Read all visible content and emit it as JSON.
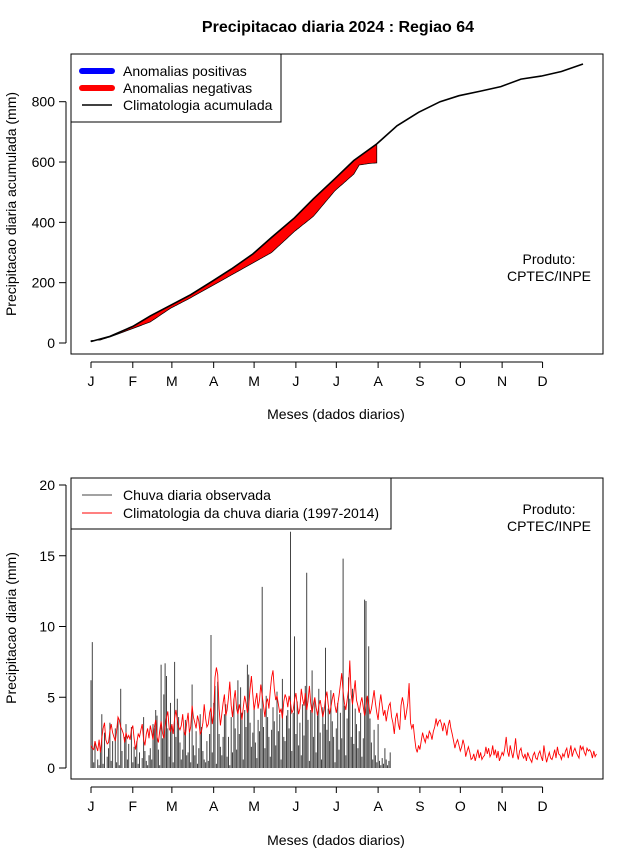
{
  "title": "Precipitacao diaria 2024 : Regiao 64",
  "months": [
    "J",
    "F",
    "M",
    "A",
    "M",
    "J",
    "J",
    "A",
    "S",
    "O",
    "N",
    "D"
  ],
  "colors": {
    "positive": "#0000ff",
    "negative": "#ff0000",
    "observed_line": "#000000",
    "clim_line": "#000000",
    "obs_bars": "#444444",
    "clim_daily": "#ff0000"
  },
  "chart_data": [
    {
      "type": "area",
      "title": "Precipitacao diaria 2024 : Regiao 64",
      "xlabel": "Meses (dados diarios)",
      "ylabel": "Precipitacao diaria acumulada (mm)",
      "ylim": [
        0,
        925
      ],
      "yticks": [
        0,
        200,
        400,
        600,
        800
      ],
      "xlim_days": [
        1,
        366
      ],
      "legend": {
        "placement": "top-left",
        "entries": [
          "Anomalias positivas",
          "Anomalias negativas",
          "Climatologia acumulada"
        ]
      },
      "credit": [
        "Produto:",
        "CPTEC/INPE"
      ],
      "climatology_cumulative": {
        "days": [
          1,
          15,
          32,
          45,
          60,
          75,
          91,
          105,
          121,
          135,
          152,
          166,
          182,
          196,
          213,
          228,
          244,
          260,
          274,
          290,
          305,
          320,
          335,
          350,
          366
        ],
        "values": [
          5,
          22,
          55,
          90,
          125,
          160,
          205,
          245,
          295,
          350,
          415,
          478,
          545,
          605,
          660,
          720,
          765,
          800,
          820,
          835,
          850,
          875,
          885,
          900,
          925
        ]
      },
      "observed_cumulative": {
        "days": [
          1,
          8,
          15,
          32,
          45,
          60,
          75,
          91,
          105,
          121,
          135,
          152,
          166,
          182,
          196,
          200,
          207,
          213
        ],
        "values": [
          8,
          10,
          20,
          48,
          70,
          115,
          150,
          190,
          225,
          265,
          300,
          370,
          420,
          505,
          560,
          590,
          595,
          597
        ]
      }
    },
    {
      "type": "bar",
      "xlabel": "Meses (dados diarios)",
      "ylabel": "Precipitacao diaria (mm)",
      "ylim": [
        0,
        20
      ],
      "yticks": [
        0,
        5,
        10,
        15,
        20
      ],
      "xlim_days": [
        1,
        366
      ],
      "legend": {
        "placement": "top-left",
        "entries": [
          "Chuva diaria observada",
          "Climatologia da chuva diaria (1997-2014)"
        ]
      },
      "credit": [
        "Produto:",
        "CPTEC/INPE"
      ],
      "observed_daily": [
        6.2,
        8.9,
        0.4,
        1.8,
        0,
        0.6,
        0.2,
        1.1,
        3.8,
        0.3,
        2.5,
        0,
        0.8,
        1.4,
        3.2,
        0.5,
        1.9,
        0,
        2.8,
        0.4,
        3.6,
        0.2,
        5.6,
        1.2,
        0,
        2.2,
        3.1,
        0.6,
        1.7,
        0,
        2.9,
        0.4,
        1.5,
        0.8,
        1.9,
        0.3,
        1.1,
        0,
        0.7,
        3.6,
        1.2,
        0.5,
        0.2,
        0.9,
        1.4,
        0.6,
        3.1,
        2.8,
        4.1,
        3.7,
        1.3,
        0.2,
        7.3,
        2.1,
        5.2,
        7.4,
        6.5,
        2.8,
        0.8,
        4.6,
        2.9,
        0.4,
        7.5,
        2.2,
        4.9,
        3.6,
        1.8,
        0.6,
        1.3,
        2.7,
        3.4,
        0.9,
        1.1,
        2.5,
        0.4,
        5.9,
        1.6,
        0.9,
        2.6,
        0.3,
        1.4,
        3.8,
        2.9,
        1.2,
        0.6,
        0.4,
        1.9,
        0.5,
        2.4,
        9.4,
        1.1,
        4.6,
        5.8,
        0.3,
        6.1,
        2.4,
        1.5,
        0.9,
        2.2,
        3.8,
        4.5,
        0.8,
        2.2,
        0.2,
        3.6,
        1.1,
        4.9,
        2.8,
        1.3,
        6.2,
        2.4,
        5.7,
        3.9,
        0.6,
        4.1,
        2.9,
        7.3,
        6.6,
        3.2,
        1.5,
        2.5,
        4.3,
        1.8,
        0.7,
        3.4,
        2.6,
        4.2,
        12.8,
        2.9,
        1.4,
        5.1,
        3.6,
        2.2,
        0.8,
        2.7,
        4.3,
        3.3,
        1.6,
        5.4,
        2.6,
        3.8,
        0.6,
        6.3,
        2.2,
        1.9,
        3.7,
        4.1,
        2.8,
        16.7,
        1.2,
        3.9,
        9.3,
        2.4,
        4.7,
        1.6,
        3.2,
        0.9,
        4.5,
        2.3,
        5.8,
        13.8,
        3.4,
        0.5,
        4.1,
        6.9,
        2.2,
        4.8,
        1.1,
        3.7,
        5.6,
        2.5,
        0.6,
        4.3,
        3.1,
        8.5,
        2.7,
        4.2,
        1.9,
        5.5,
        3.3,
        2.2,
        0.4,
        2.8,
        4.6,
        1.3,
        3.9,
        2.1,
        14.8,
        4.4,
        0.9,
        3.5,
        6.4,
        4.9,
        2.2,
        5.6,
        1.7,
        4.2,
        3.1,
        1.4,
        2.6,
        3.9,
        0.8,
        2.1,
        11.9,
        11.8,
        4.9,
        8.6,
        3.5,
        1.8,
        0.6,
        2.7,
        0.9,
        0.4,
        3.1,
        0.5,
        0.2,
        0.7,
        0.3,
        1.4,
        0.6,
        0.2,
        0.5,
        1.1
      ],
      "climatology_daily": [
        1.6,
        1.4,
        1.3,
        1.9,
        1.5,
        1.2,
        2.0,
        1.1,
        2.1,
        2.8,
        3.2,
        2.0,
        1.7,
        1.8,
        2.6,
        3.1,
        2.5,
        2.2,
        1.9,
        2.6,
        3.6,
        3.4,
        2.9,
        2.7,
        2.4,
        1.8,
        2.5,
        2.1,
        2.3,
        2.0,
        2.7,
        3.0,
        2.1,
        1.3,
        1.8,
        2.4,
        2.2,
        2.7,
        3.1,
        2.0,
        1.6,
        2.4,
        2.8,
        2.1,
        3.0,
        2.5,
        2.0,
        2.9,
        3.4,
        2.2,
        1.8,
        2.6,
        3.3,
        2.5,
        2.1,
        2.9,
        3.6,
        4.0,
        2.8,
        2.6,
        3.1,
        2.4,
        3.5,
        4.1,
        3.4,
        2.9,
        2.7,
        3.0,
        3.8,
        2.6,
        2.3,
        3.2,
        3.9,
        2.5,
        2.9,
        4.4,
        3.6,
        3.2,
        2.8,
        3.7,
        3.3,
        2.4,
        2.6,
        3.2,
        4.5,
        3.5,
        2.9,
        3.1,
        3.9,
        4.3,
        3.1,
        3.8,
        6.4,
        7.1,
        6.6,
        4.2,
        3.0,
        3.8,
        4.6,
        5.2,
        3.7,
        4.1,
        5.0,
        6.1,
        4.4,
        3.6,
        4.8,
        5.5,
        4.2,
        3.8,
        4.5,
        4.0,
        3.4,
        4.3,
        5.1,
        4.6,
        3.9,
        4.4,
        5.6,
        6.5,
        5.2,
        4.1,
        4.7,
        5.3,
        4.2,
        4.8,
        5.9,
        5.1,
        4.4,
        3.6,
        4.6,
        4.9,
        4.2,
        5.5,
        6.4,
        6.9,
        5.6,
        4.8,
        5.1,
        4.5,
        3.9,
        4.2,
        3.5,
        4.7,
        5.2,
        4.9,
        4.3,
        5.1,
        4.6,
        3.9,
        4.1,
        4.8,
        5.3,
        4.5,
        3.8,
        4.2,
        5.6,
        4.9,
        4.4,
        5.3,
        4.1,
        4.7,
        5.8,
        4.6,
        3.9,
        4.5,
        5.0,
        4.3,
        3.7,
        4.4,
        4.8,
        4.2,
        3.6,
        4.1,
        4.9,
        5.4,
        4.5,
        3.8,
        4.3,
        4.9,
        5.3,
        4.4,
        3.9,
        4.5,
        5.1,
        5.9,
        6.7,
        5.4,
        4.6,
        4.1,
        4.8,
        5.5,
        7.6,
        5.2,
        4.5,
        5.3,
        6.2,
        4.8,
        4.4,
        3.9,
        4.6,
        5.0,
        4.3,
        3.7,
        4.4,
        5.1,
        4.5,
        3.8,
        4.2,
        4.8,
        5.5,
        4.6,
        3.9,
        3.4,
        4.5,
        5.2,
        4.4,
        3.7,
        4.1,
        3.3,
        3.9,
        4.4,
        4.6,
        3.6,
        3.2,
        2.4,
        3.5,
        3.9,
        3.1,
        2.7,
        4.4,
        5.0,
        4.5,
        3.4,
        3.9,
        4.6,
        6.0,
        3.2,
        2.8,
        3.1,
        2.2,
        1.4,
        1.1,
        1.6,
        1.3,
        1.9,
        2.5,
        2.1,
        1.8,
        2.3,
        2.1,
        2.6,
        2.4,
        2.0,
        2.6,
        2.9,
        3.5,
        3.0,
        3.3,
        3.4,
        3.1,
        2.6,
        3.2,
        2.9,
        2.3,
        3.0,
        3.4,
        2.8,
        2.4,
        1.9,
        1.4,
        1.8,
        2.0,
        1.6,
        1.2,
        1.5,
        2.0,
        1.6,
        0.8,
        1.2,
        1.5,
        1.1,
        0.6,
        0.7,
        1.0,
        0.5,
        0.9,
        1.3,
        0.7,
        1.1,
        0.6,
        0.8,
        0.9,
        1.5,
        1.0,
        1.4,
        0.8,
        1.0,
        1.6,
        0.9,
        1.3,
        0.7,
        1.2,
        0.5,
        0.8,
        1.1,
        0.9,
        1.4,
        2.2,
        1.2,
        0.8,
        1.6,
        1.1,
        0.7,
        1.3,
        2.1,
        1.0,
        0.6,
        1.2,
        1.4,
        0.9,
        0.7,
        1.0,
        0.5,
        1.1,
        0.8,
        0.6,
        0.4,
        0.9,
        1.1,
        0.7,
        0.6,
        1.0,
        1.2,
        0.8,
        0.5,
        1.6,
        0.9,
        0.4,
        0.8,
        1.1,
        0.7,
        0.6,
        0.9,
        1.3,
        0.7,
        1.5,
        1.0,
        0.9,
        0.6,
        1.0,
        0.8,
        1.2,
        1.4,
        0.7,
        1.1,
        1.6,
        0.8,
        1.2,
        1.4,
        1.1,
        0.9,
        0.7,
        1.6,
        1.3,
        1.5,
        1.1,
        0.9,
        1.4,
        1.2,
        1.3,
        1.1,
        0.7,
        1.2,
        0.8,
        1.0
      ]
    }
  ]
}
